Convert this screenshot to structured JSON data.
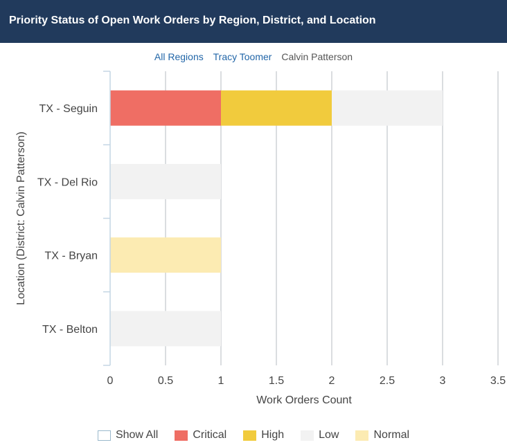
{
  "header": {
    "title": "Priority Status of Open Work Orders by Region, District, and Location"
  },
  "breadcrumb": [
    {
      "label": "All Regions",
      "link": true
    },
    {
      "label": "Tracy Toomer",
      "link": true
    },
    {
      "label": "Calvin Patterson",
      "link": false
    }
  ],
  "legend": [
    {
      "label": "Show All",
      "color": "#ffffff",
      "border": "#9ab8cc"
    },
    {
      "label": "Critical",
      "color": "#ef6e64"
    },
    {
      "label": "High",
      "color": "#f1cb3d"
    },
    {
      "label": "Low",
      "color": "#f2f2f2"
    },
    {
      "label": "Normal",
      "color": "#fcebb2"
    }
  ],
  "chart_data": {
    "type": "bar",
    "orientation": "horizontal",
    "stacked": true,
    "categories": [
      "TX - Seguin",
      "TX - Del Rio",
      "TX - Bryan",
      "TX - Belton"
    ],
    "series": [
      {
        "name": "Critical",
        "color": "#ef6e64",
        "values": [
          1,
          0,
          0,
          0
        ]
      },
      {
        "name": "High",
        "color": "#f1cb3d",
        "values": [
          1,
          0,
          0,
          0
        ]
      },
      {
        "name": "Low",
        "color": "#f2f2f2",
        "values": [
          1,
          1,
          0,
          1
        ]
      },
      {
        "name": "Normal",
        "color": "#fcebb2",
        "values": [
          0,
          0,
          1,
          0
        ]
      }
    ],
    "xlabel": "Work Orders Count",
    "ylabel": "Location (District: Calvin Patterson)",
    "xlim": [
      0,
      3.5
    ],
    "xticks": [
      "0",
      "0.5",
      "1",
      "1.5",
      "2",
      "2.5",
      "3",
      "3.5"
    ],
    "grid": true,
    "legend_position": "bottom"
  }
}
